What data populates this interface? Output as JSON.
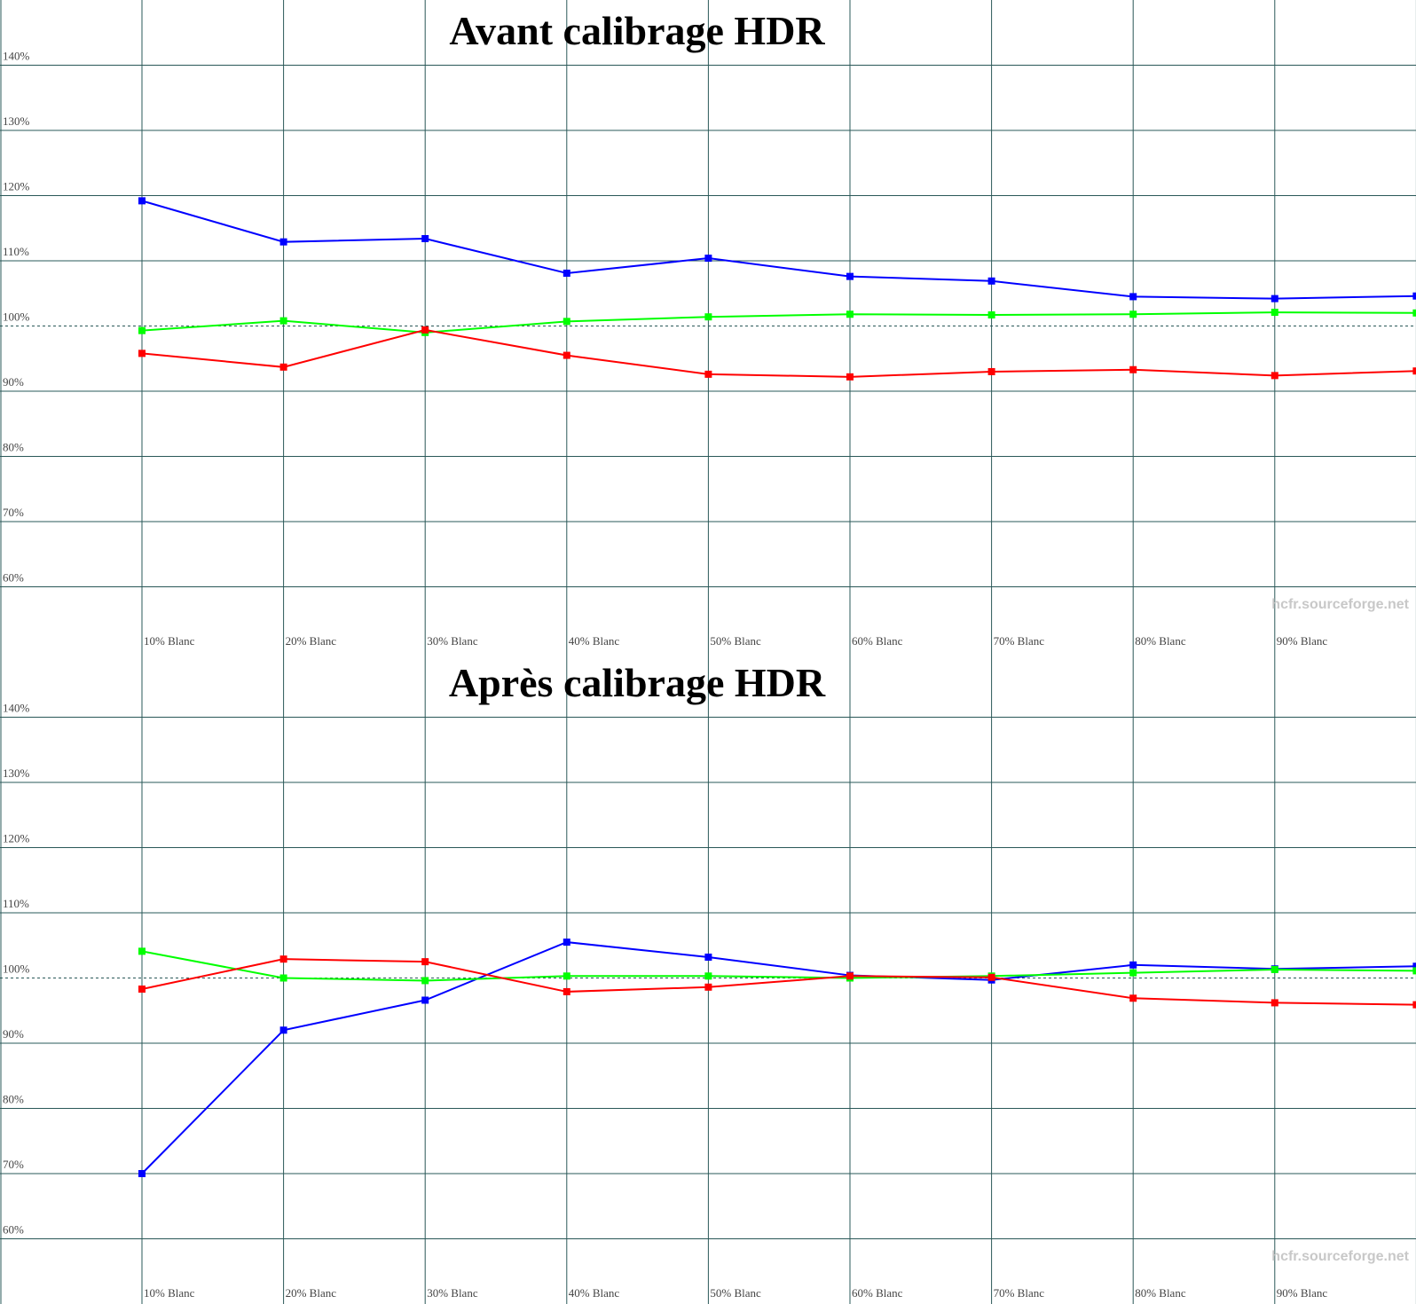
{
  "chart_data": [
    {
      "type": "line",
      "title": "Avant calibrage HDR",
      "watermark": "hcfr.sourceforge.net",
      "categories": [
        "10% Blanc",
        "20% Blanc",
        "30% Blanc",
        "40% Blanc",
        "50% Blanc",
        "60% Blanc",
        "70% Blanc",
        "80% Blanc",
        "90% Blanc",
        null
      ],
      "series": [
        {
          "color": "#0000ff",
          "values": [
            119.2,
            112.9,
            113.4,
            108.1,
            110.4,
            107.6,
            106.9,
            104.5,
            104.2,
            104.6
          ]
        },
        {
          "color": "#00ff00",
          "values": [
            99.3,
            100.8,
            99.0,
            100.7,
            101.4,
            101.8,
            101.7,
            101.8,
            102.1,
            102.0
          ]
        },
        {
          "color": "#ff0000",
          "values": [
            95.8,
            93.7,
            99.4,
            95.5,
            92.6,
            92.2,
            93.0,
            93.3,
            92.4,
            93.1
          ]
        }
      ],
      "ylim": [
        50,
        150
      ],
      "yticks": [
        {
          "value": 60,
          "label": "60%"
        },
        {
          "value": 70,
          "label": "70%"
        },
        {
          "value": 80,
          "label": "80%"
        },
        {
          "value": 90,
          "label": "90%"
        },
        {
          "value": 100,
          "label": "100%"
        },
        {
          "value": 110,
          "label": "110%"
        },
        {
          "value": 120,
          "label": "120%"
        },
        {
          "value": 130,
          "label": "130%"
        },
        {
          "value": 140,
          "label": "140%"
        }
      ],
      "reference_line": 100,
      "grid": true
    },
    {
      "type": "line",
      "title": "Après calibrage HDR",
      "watermark": "hcfr.sourceforge.net",
      "categories": [
        "10% Blanc",
        "20% Blanc",
        "30% Blanc",
        "40% Blanc",
        "50% Blanc",
        "60% Blanc",
        "70% Blanc",
        "80% Blanc",
        "90% Blanc",
        null
      ],
      "series": [
        {
          "color": "#0000ff",
          "values": [
            70.0,
            92.0,
            96.6,
            105.5,
            103.2,
            100.4,
            99.7,
            102.0,
            101.4,
            101.8
          ]
        },
        {
          "color": "#00ff00",
          "values": [
            104.1,
            100.0,
            99.6,
            100.3,
            100.3,
            100.0,
            100.3,
            100.8,
            101.3,
            101.1
          ]
        },
        {
          "color": "#ff0000",
          "values": [
            98.3,
            102.9,
            102.5,
            97.9,
            98.6,
            100.3,
            100.1,
            96.9,
            96.2,
            95.9
          ]
        }
      ],
      "ylim": [
        50,
        150
      ],
      "yticks": [
        {
          "value": 60,
          "label": "60%"
        },
        {
          "value": 70,
          "label": "70%"
        },
        {
          "value": 80,
          "label": "80%"
        },
        {
          "value": 90,
          "label": "90%"
        },
        {
          "value": 100,
          "label": "100%"
        },
        {
          "value": 110,
          "label": "110%"
        },
        {
          "value": 120,
          "label": "120%"
        },
        {
          "value": 130,
          "label": "130%"
        },
        {
          "value": 140,
          "label": "140%"
        }
      ],
      "reference_line": 100,
      "grid": true
    }
  ]
}
